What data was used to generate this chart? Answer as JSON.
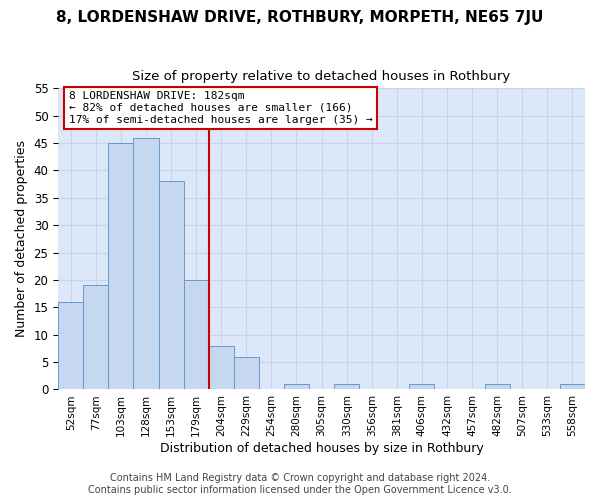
{
  "title": "8, LORDENSHAW DRIVE, ROTHBURY, MORPETH, NE65 7JU",
  "subtitle": "Size of property relative to detached houses in Rothbury",
  "xlabel": "Distribution of detached houses by size in Rothbury",
  "ylabel": "Number of detached properties",
  "categories": [
    "52sqm",
    "77sqm",
    "103sqm",
    "128sqm",
    "153sqm",
    "179sqm",
    "204sqm",
    "229sqm",
    "254sqm",
    "280sqm",
    "305sqm",
    "330sqm",
    "356sqm",
    "381sqm",
    "406sqm",
    "432sqm",
    "457sqm",
    "482sqm",
    "507sqm",
    "533sqm",
    "558sqm"
  ],
  "values": [
    16,
    19,
    45,
    46,
    38,
    20,
    8,
    6,
    0,
    1,
    0,
    1,
    0,
    0,
    1,
    0,
    0,
    1,
    0,
    0,
    1
  ],
  "bar_color": "#c5d8f0",
  "bar_edge_color": "#6699cc",
  "vline_position": 5.5,
  "vline_color": "#cc0000",
  "annotation_line1": "8 LORDENSHAW DRIVE: 182sqm",
  "annotation_line2": "← 82% of detached houses are smaller (166)",
  "annotation_line3": "17% of semi-detached houses are larger (35) →",
  "annotation_box_facecolor": "white",
  "annotation_box_edgecolor": "#cc0000",
  "ylim": [
    0,
    55
  ],
  "yticks": [
    0,
    5,
    10,
    15,
    20,
    25,
    30,
    35,
    40,
    45,
    50,
    55
  ],
  "grid_color": "#c8d4e8",
  "plot_bg_color": "#dce8f8",
  "fig_bg_color": "#ffffff",
  "footer_line1": "Contains HM Land Registry data © Crown copyright and database right 2024.",
  "footer_line2": "Contains public sector information licensed under the Open Government Licence v3.0."
}
